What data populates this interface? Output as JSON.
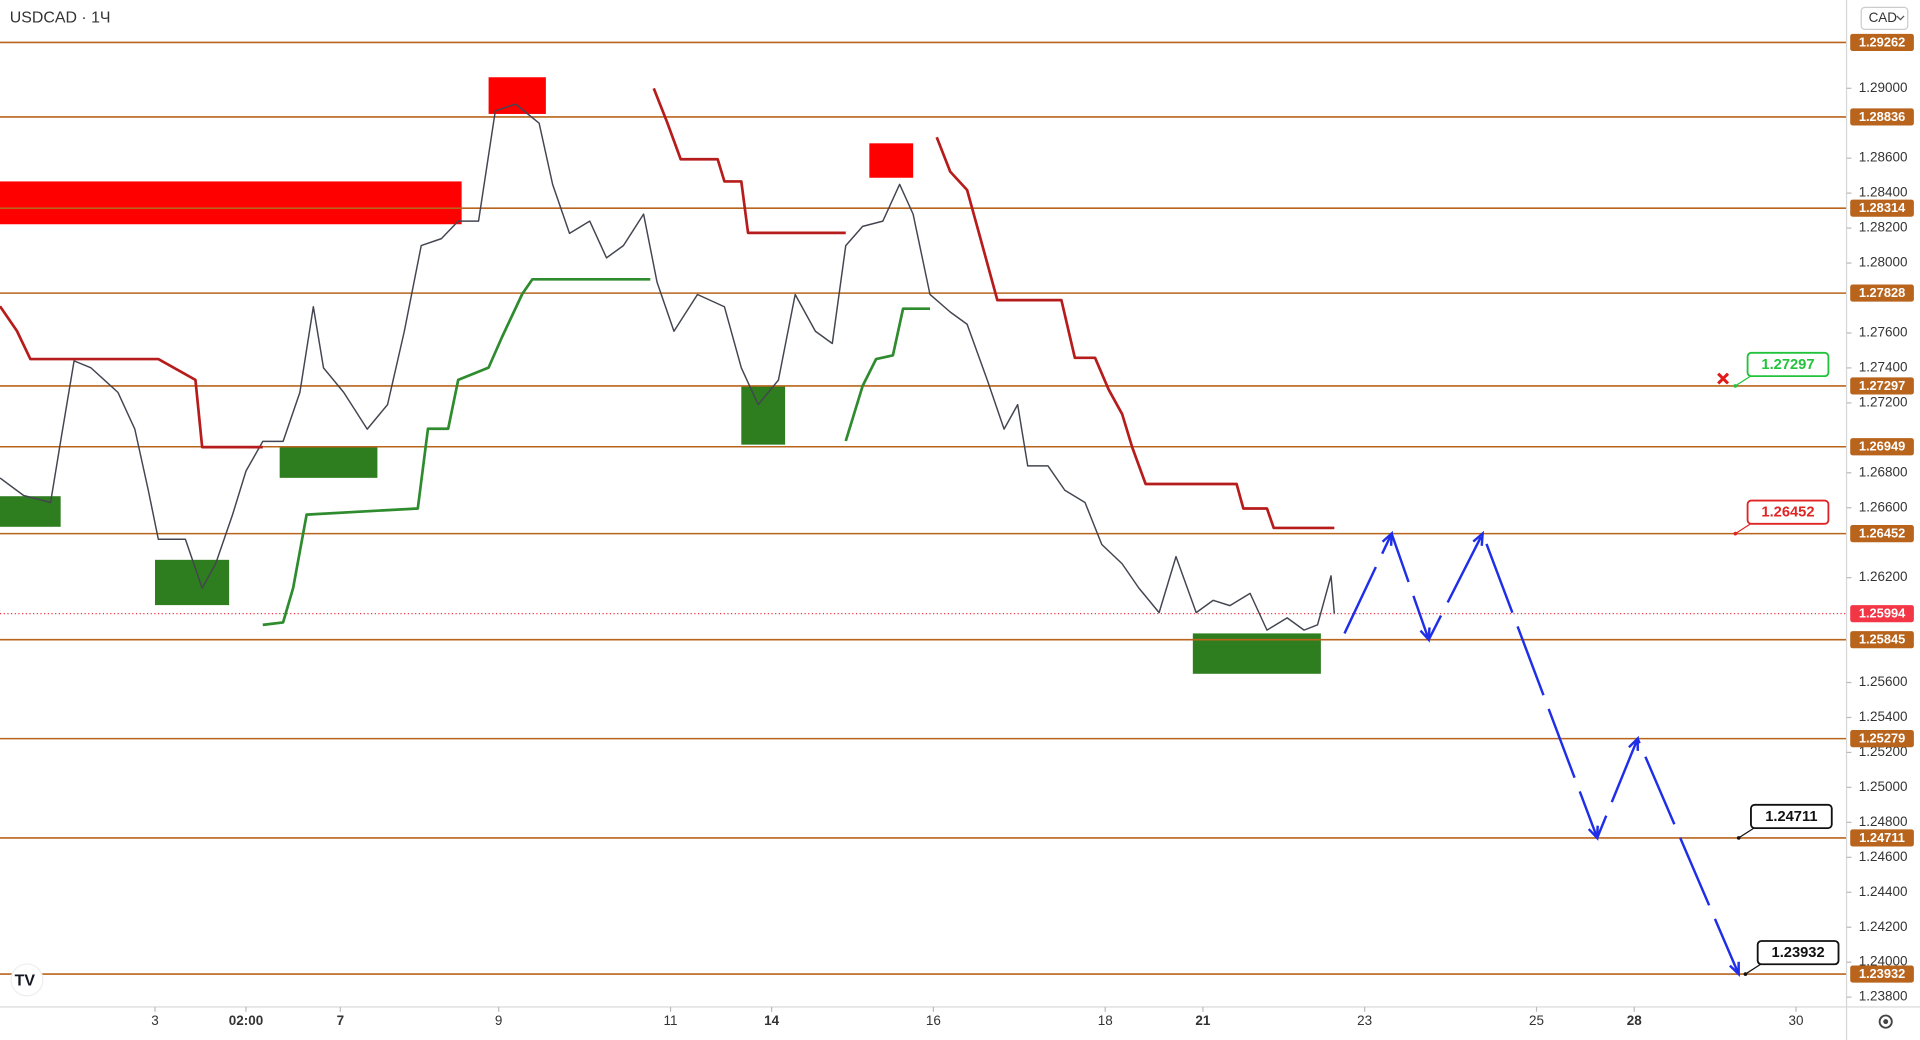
{
  "chart_data": {
    "type": "line",
    "title": "USDCAD · 1Ч",
    "currency": "CAD",
    "ylim": [
      1.23744,
      1.29505
    ],
    "xlim": [
      0,
      548
    ],
    "yticks": [
      {
        "value": 1.29,
        "label": "1.29000"
      },
      {
        "value": 1.286,
        "label": "1.28600"
      },
      {
        "value": 1.284,
        "label": "1.28400"
      },
      {
        "value": 1.282,
        "label": "1.28200"
      },
      {
        "value": 1.28,
        "label": "1.28000"
      },
      {
        "value": 1.276,
        "label": "1.27600"
      },
      {
        "value": 1.274,
        "label": "1.27400"
      },
      {
        "value": 1.272,
        "label": "1.27200"
      },
      {
        "value": 1.268,
        "label": "1.26800"
      },
      {
        "value": 1.266,
        "label": "1.26600"
      },
      {
        "value": 1.262,
        "label": "1.26200"
      },
      {
        "value": 1.256,
        "label": "1.25600"
      },
      {
        "value": 1.254,
        "label": "1.25400"
      },
      {
        "value": 1.252,
        "label": "1.25200"
      },
      {
        "value": 1.25,
        "label": "1.25000"
      },
      {
        "value": 1.248,
        "label": "1.24800"
      },
      {
        "value": 1.246,
        "label": "1.24600"
      },
      {
        "value": 1.244,
        "label": "1.24400"
      },
      {
        "value": 1.242,
        "label": "1.24200"
      },
      {
        "value": 1.24,
        "label": "1.24000"
      },
      {
        "value": 1.238,
        "label": "1.23800"
      }
    ],
    "xticks": [
      {
        "value": 46,
        "label": "3"
      },
      {
        "value": 73,
        "label": "02:00"
      },
      {
        "value": 101,
        "label": "7"
      },
      {
        "value": 148,
        "label": "9"
      },
      {
        "value": 199,
        "label": "11"
      },
      {
        "value": 229,
        "label": "14"
      },
      {
        "value": 277,
        "label": "16"
      },
      {
        "value": 328,
        "label": "18"
      },
      {
        "value": 357,
        "label": "21"
      },
      {
        "value": 405,
        "label": "23"
      },
      {
        "value": 456,
        "label": "25"
      },
      {
        "value": 485,
        "label": "28"
      },
      {
        "value": 533,
        "label": "30"
      }
    ],
    "series": [
      {
        "color": "#434651",
        "x": [
          0,
          7,
          15,
          18,
          22,
          27,
          35,
          40,
          44,
          47,
          55,
          60,
          64,
          69,
          73,
          78,
          84,
          89,
          93,
          96,
          102,
          109,
          115,
          120,
          125,
          131,
          136,
          142,
          147,
          153,
          160,
          164,
          169,
          175,
          180,
          185,
          191,
          195,
          200,
          207,
          215,
          220,
          225,
          231,
          236,
          242,
          247,
          251,
          256,
          262,
          267,
          271,
          276,
          282,
          287,
          293,
          298,
          302,
          305,
          311,
          316,
          322,
          327,
          333,
          338,
          344,
          349,
          355,
          360,
          365,
          371,
          376,
          382,
          387,
          391,
          395,
          396
        ],
        "values": [
          1.2677,
          1.2667,
          1.2663,
          1.2698,
          1.2744,
          1.274,
          1.2726,
          1.2705,
          1.267,
          1.2642,
          1.2642,
          1.2614,
          1.2628,
          1.2656,
          1.2681,
          1.2698,
          1.2698,
          1.2726,
          1.2775,
          1.274,
          1.2726,
          1.2705,
          1.2719,
          1.2761,
          1.281,
          1.2814,
          1.2824,
          1.2824,
          1.2887,
          1.2891,
          1.288,
          1.2845,
          1.2817,
          1.2824,
          1.2803,
          1.281,
          1.2828,
          1.2789,
          1.2761,
          1.2782,
          1.2775,
          1.274,
          1.2719,
          1.2733,
          1.2782,
          1.2761,
          1.2754,
          1.281,
          1.2821,
          1.2824,
          1.2845,
          1.2828,
          1.2782,
          1.2772,
          1.2765,
          1.2733,
          1.2705,
          1.2719,
          1.2684,
          1.2684,
          1.267,
          1.2663,
          1.2639,
          1.2628,
          1.2614,
          1.26,
          1.2632,
          1.26,
          1.2607,
          1.2604,
          1.2611,
          1.259,
          1.2597,
          1.259,
          1.2593,
          1.2621,
          1.25994
        ]
      },
      {
        "color": "#b71c1c",
        "x": [
          0,
          5,
          9,
          47,
          58,
          60,
          78,
          136,
          194,
          198,
          202,
          213,
          215,
          220,
          222,
          251,
          264,
          278,
          282,
          287,
          291,
          296,
          315,
          319,
          325,
          329,
          333,
          336,
          340,
          367,
          369,
          376,
          378,
          396
        ],
        "values": [
          1.27753,
          1.27612,
          1.27451,
          1.27451,
          1.27332,
          1.26947,
          1.26947,
          null,
          1.29,
          1.28804,
          1.28594,
          1.28594,
          1.28467,
          1.28467,
          1.28173,
          1.28173,
          null,
          1.2872,
          1.28523,
          1.28418,
          1.28138,
          1.27788,
          1.27788,
          1.27458,
          1.27458,
          1.27276,
          1.27136,
          1.26947,
          1.26736,
          1.26736,
          1.26596,
          1.26596,
          1.26484,
          1.26484
        ]
      },
      {
        "color": "#2e8b2e",
        "x": [
          78,
          84,
          87,
          91,
          124,
          127,
          133,
          136,
          145,
          149,
          155,
          158,
          193,
          220,
          251,
          256,
          260,
          265,
          268,
          276
        ],
        "values": [
          1.2593,
          1.25944,
          1.26141,
          1.26561,
          1.26596,
          1.27052,
          1.27052,
          1.27332,
          1.27402,
          1.27577,
          1.27823,
          1.27907,
          1.27907,
          null,
          1.26982,
          1.27297,
          1.27451,
          1.27472,
          1.27739,
          1.27739
        ]
      },
      {
        "color": "#1f2ee8",
        "dashed": true,
        "x": [
          399,
          413,
          424,
          440,
          474,
          486,
          516
        ],
        "values": [
          1.25881,
          1.26452,
          1.25845,
          1.26452,
          1.24711,
          1.25279,
          1.23932
        ]
      }
    ],
    "zones": [
      {
        "x": [
          0,
          137
        ],
        "y": [
          1.28222,
          1.28467
        ],
        "color": "#ff0000"
      },
      {
        "x": [
          145,
          162
        ],
        "y": [
          1.28853,
          1.29063
        ],
        "color": "#ff0000"
      },
      {
        "x": [
          258,
          271
        ],
        "y": [
          1.28488,
          1.28685
        ],
        "color": "#ff0000"
      },
      {
        "x": [
          0,
          18
        ],
        "y": [
          1.26491,
          1.26666
        ],
        "color": "#2e7d1f"
      },
      {
        "x": [
          46,
          68
        ],
        "y": [
          1.26043,
          1.26302
        ],
        "color": "#2e7d1f"
      },
      {
        "x": [
          83,
          112
        ],
        "y": [
          1.26771,
          1.26947
        ],
        "color": "#2e7d1f"
      },
      {
        "x": [
          220,
          233
        ],
        "y": [
          1.26961,
          1.27297
        ],
        "color": "#2e7d1f"
      },
      {
        "x": [
          354,
          392
        ],
        "y": [
          1.2565,
          1.25881
        ],
        "color": "#2e7d1f"
      }
    ],
    "levels": [
      1.29262,
      1.28836,
      1.28314,
      1.27828,
      1.27297,
      1.26949,
      1.26452,
      1.25845,
      1.25279,
      1.24711,
      1.23932
    ],
    "level_color": "#b8641c",
    "last_price": 1.25994,
    "last_price_color": "#f23645",
    "callouts": [
      {
        "value": 1.27297,
        "color": "#22c33a"
      },
      {
        "value": 1.26452,
        "color": "#e02424"
      },
      {
        "value": 1.24711,
        "color": "#111111"
      },
      {
        "value": 1.23932,
        "color": "#111111"
      }
    ]
  }
}
